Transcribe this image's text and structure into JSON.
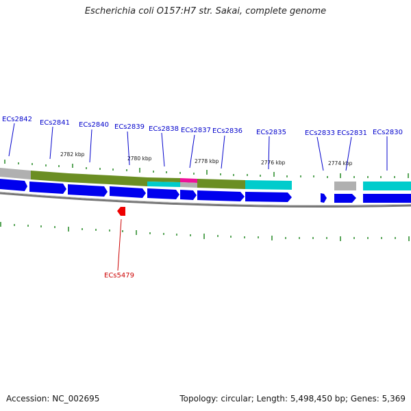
{
  "title": "Escherichia coli O157:H7 str. Sakai, complete genome",
  "footer": {
    "accession": "Accession: NC_002695",
    "summary": "Topology: circular; Length: 5,498,450 bp; Genes: 5,369"
  },
  "colors": {
    "forward_gene": "#0000ee",
    "reverse_gene": "#ee0000",
    "label_forward": "#0000cc",
    "label_reverse": "#cc0000",
    "tick": "#228822",
    "backbone": "#888888",
    "olive": "#6b8e23",
    "cyan": "#00cccc",
    "gray": "#aaaaaa",
    "magenta": "#ee1199"
  },
  "scale_labels": [
    "2782 kbp",
    "2780 kbp",
    "2778 kbp",
    "2776 kbp",
    "2774 kbp"
  ],
  "forward_genes": [
    "ECs2842",
    "ECs2841",
    "ECs2840",
    "ECs2839",
    "ECs2838",
    "ECs2837",
    "ECs2836",
    "ECs2835",
    "ECs2833",
    "ECs2831",
    "ECs2830"
  ],
  "reverse_genes": [
    "ECs5479"
  ]
}
